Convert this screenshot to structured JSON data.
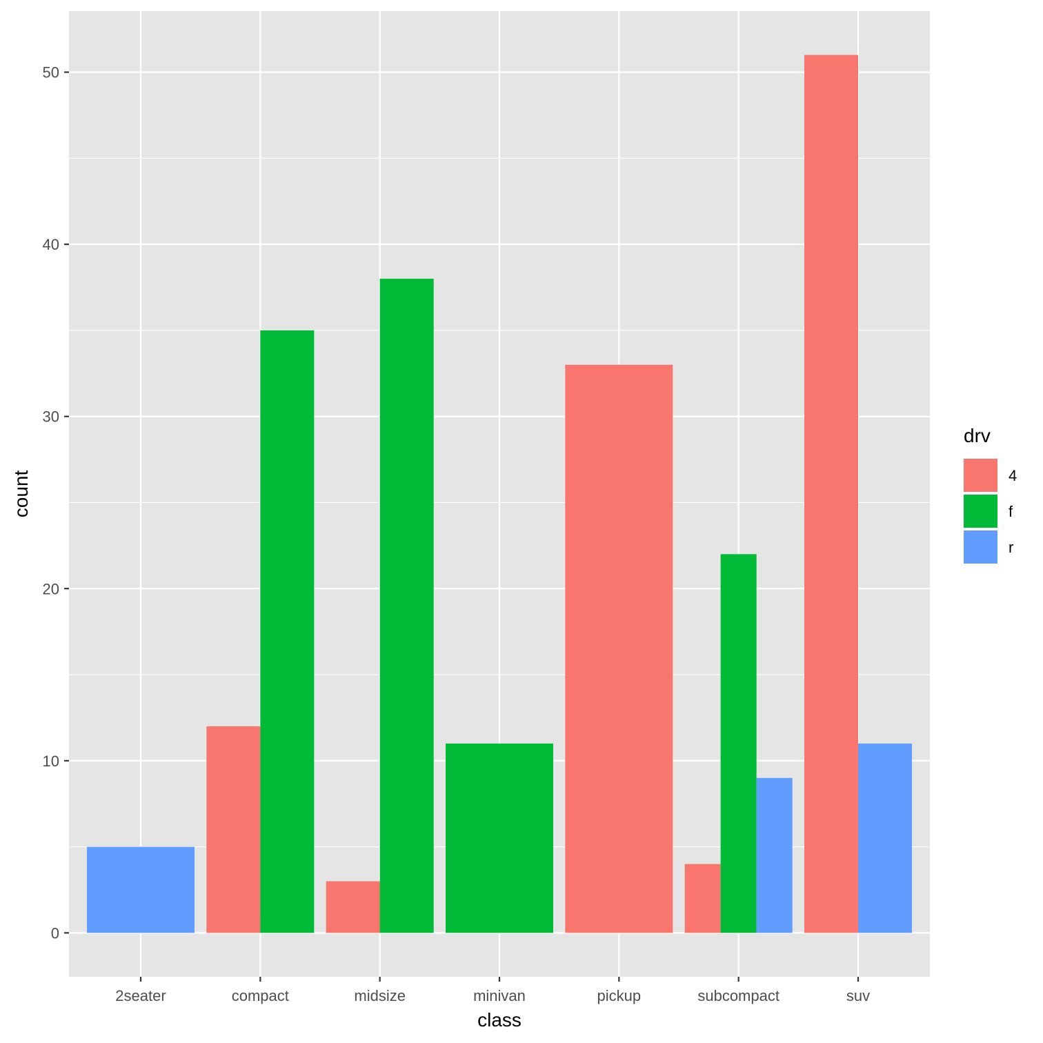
{
  "chart_data": {
    "type": "bar",
    "position": "dodge",
    "title": "",
    "xlabel": "class",
    "ylabel": "count",
    "categories": [
      "2seater",
      "compact",
      "midsize",
      "minivan",
      "pickup",
      "subcompact",
      "suv"
    ],
    "series": [
      {
        "name": "4",
        "color": "#F8766D",
        "values": [
          null,
          12,
          3,
          null,
          33,
          4,
          51
        ]
      },
      {
        "name": "f",
        "color": "#00BA38",
        "values": [
          null,
          35,
          38,
          11,
          null,
          22,
          null
        ]
      },
      {
        "name": "r",
        "color": "#619CFF",
        "values": [
          5,
          null,
          null,
          null,
          null,
          9,
          11
        ]
      }
    ],
    "ylim": [
      -2.55,
      53.55
    ],
    "yticks": [
      0,
      10,
      20,
      30,
      40,
      50
    ],
    "y_minor_ticks": [
      5,
      15,
      25,
      35,
      45
    ],
    "grid": true,
    "legend": {
      "title": "drv",
      "placement": "right"
    },
    "colors": {
      "panel": "#E5E5E5",
      "grid": "#FFFFFF",
      "axis_text": "#4D4D4D"
    }
  }
}
